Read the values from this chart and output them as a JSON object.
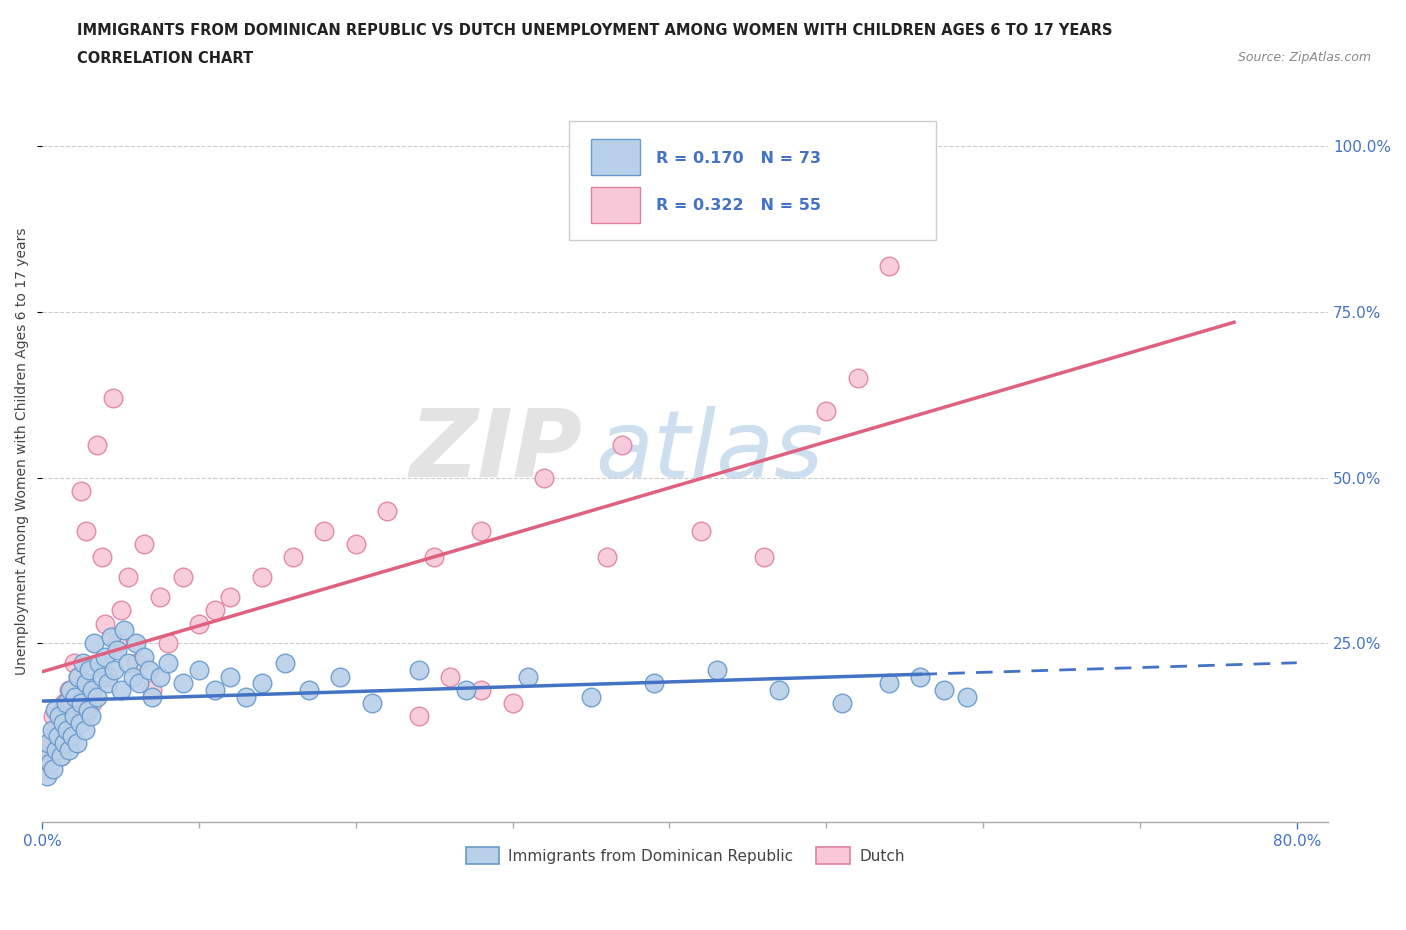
{
  "title_line1": "IMMIGRANTS FROM DOMINICAN REPUBLIC VS DUTCH UNEMPLOYMENT AMONG WOMEN WITH CHILDREN AGES 6 TO 17 YEARS",
  "title_line2": "CORRELATION CHART",
  "source_text": "Source: ZipAtlas.com",
  "ylabel": "Unemployment Among Women with Children Ages 6 to 17 years",
  "xlim": [
    0.0,
    0.82
  ],
  "ylim": [
    -0.02,
    1.1
  ],
  "xtick_positions": [
    0.0,
    0.1,
    0.2,
    0.3,
    0.4,
    0.5,
    0.6,
    0.7,
    0.8
  ],
  "xtick_major": [
    0.0,
    0.8
  ],
  "xtick_labels": [
    "0.0%",
    "80.0%"
  ],
  "ytick_positions": [
    0.25,
    0.5,
    0.75,
    1.0
  ],
  "ytick_labels": [
    "25.0%",
    "50.0%",
    "75.0%",
    "100.0%"
  ],
  "legend1_label": "Immigrants from Dominican Republic",
  "legend2_label": "Dutch",
  "R1": 0.17,
  "N1": 73,
  "R2": 0.322,
  "N2": 55,
  "color_blue": "#b8d0e8",
  "color_blue_edge": "#6699cc",
  "color_blue_line": "#4472c4",
  "color_blue_text": "#4472c4",
  "color_pink": "#f8c8d8",
  "color_pink_edge": "#e080a0",
  "color_pink_line": "#e06080",
  "color_pink_text": "#c0404060",
  "watermark_zip": "ZIP",
  "watermark_atlas": "atlas",
  "background_color": "#ffffff",
  "grid_color": "#cccccc",
  "blue_x": [
    0.002,
    0.003,
    0.004,
    0.005,
    0.006,
    0.007,
    0.008,
    0.009,
    0.01,
    0.011,
    0.012,
    0.013,
    0.014,
    0.015,
    0.016,
    0.017,
    0.018,
    0.019,
    0.02,
    0.021,
    0.022,
    0.023,
    0.024,
    0.025,
    0.026,
    0.027,
    0.028,
    0.029,
    0.03,
    0.031,
    0.032,
    0.033,
    0.035,
    0.036,
    0.038,
    0.04,
    0.042,
    0.044,
    0.046,
    0.048,
    0.05,
    0.052,
    0.055,
    0.058,
    0.06,
    0.062,
    0.065,
    0.068,
    0.07,
    0.075,
    0.08,
    0.09,
    0.1,
    0.11,
    0.12,
    0.13,
    0.14,
    0.155,
    0.17,
    0.19,
    0.21,
    0.24,
    0.27,
    0.31,
    0.35,
    0.39,
    0.43,
    0.47,
    0.51,
    0.54,
    0.56,
    0.575,
    0.59
  ],
  "blue_y": [
    0.08,
    0.05,
    0.1,
    0.07,
    0.12,
    0.06,
    0.15,
    0.09,
    0.11,
    0.14,
    0.08,
    0.13,
    0.1,
    0.16,
    0.12,
    0.09,
    0.18,
    0.11,
    0.14,
    0.17,
    0.1,
    0.2,
    0.13,
    0.16,
    0.22,
    0.12,
    0.19,
    0.15,
    0.21,
    0.14,
    0.18,
    0.25,
    0.17,
    0.22,
    0.2,
    0.23,
    0.19,
    0.26,
    0.21,
    0.24,
    0.18,
    0.27,
    0.22,
    0.2,
    0.25,
    0.19,
    0.23,
    0.21,
    0.17,
    0.2,
    0.22,
    0.19,
    0.21,
    0.18,
    0.2,
    0.17,
    0.19,
    0.22,
    0.18,
    0.2,
    0.16,
    0.21,
    0.18,
    0.2,
    0.17,
    0.19,
    0.21,
    0.18,
    0.16,
    0.19,
    0.2,
    0.18,
    0.17
  ],
  "pink_x": [
    0.002,
    0.004,
    0.005,
    0.007,
    0.009,
    0.01,
    0.012,
    0.014,
    0.015,
    0.017,
    0.018,
    0.02,
    0.022,
    0.023,
    0.025,
    0.027,
    0.028,
    0.03,
    0.032,
    0.035,
    0.038,
    0.04,
    0.042,
    0.045,
    0.048,
    0.05,
    0.055,
    0.06,
    0.065,
    0.07,
    0.075,
    0.08,
    0.09,
    0.1,
    0.11,
    0.12,
    0.14,
    0.16,
    0.18,
    0.2,
    0.22,
    0.25,
    0.28,
    0.32,
    0.37,
    0.42,
    0.46,
    0.5,
    0.52,
    0.54,
    0.28,
    0.3,
    0.26,
    0.24,
    0.36
  ],
  "pink_y": [
    0.06,
    0.1,
    0.08,
    0.14,
    0.12,
    0.1,
    0.08,
    0.16,
    0.14,
    0.18,
    0.12,
    0.22,
    0.16,
    0.2,
    0.48,
    0.14,
    0.42,
    0.18,
    0.16,
    0.55,
    0.38,
    0.28,
    0.2,
    0.62,
    0.25,
    0.3,
    0.35,
    0.22,
    0.4,
    0.18,
    0.32,
    0.25,
    0.35,
    0.28,
    0.3,
    0.32,
    0.35,
    0.38,
    0.42,
    0.4,
    0.45,
    0.38,
    0.42,
    0.5,
    0.55,
    0.42,
    0.38,
    0.6,
    0.65,
    0.82,
    0.18,
    0.16,
    0.2,
    0.14,
    0.38
  ]
}
